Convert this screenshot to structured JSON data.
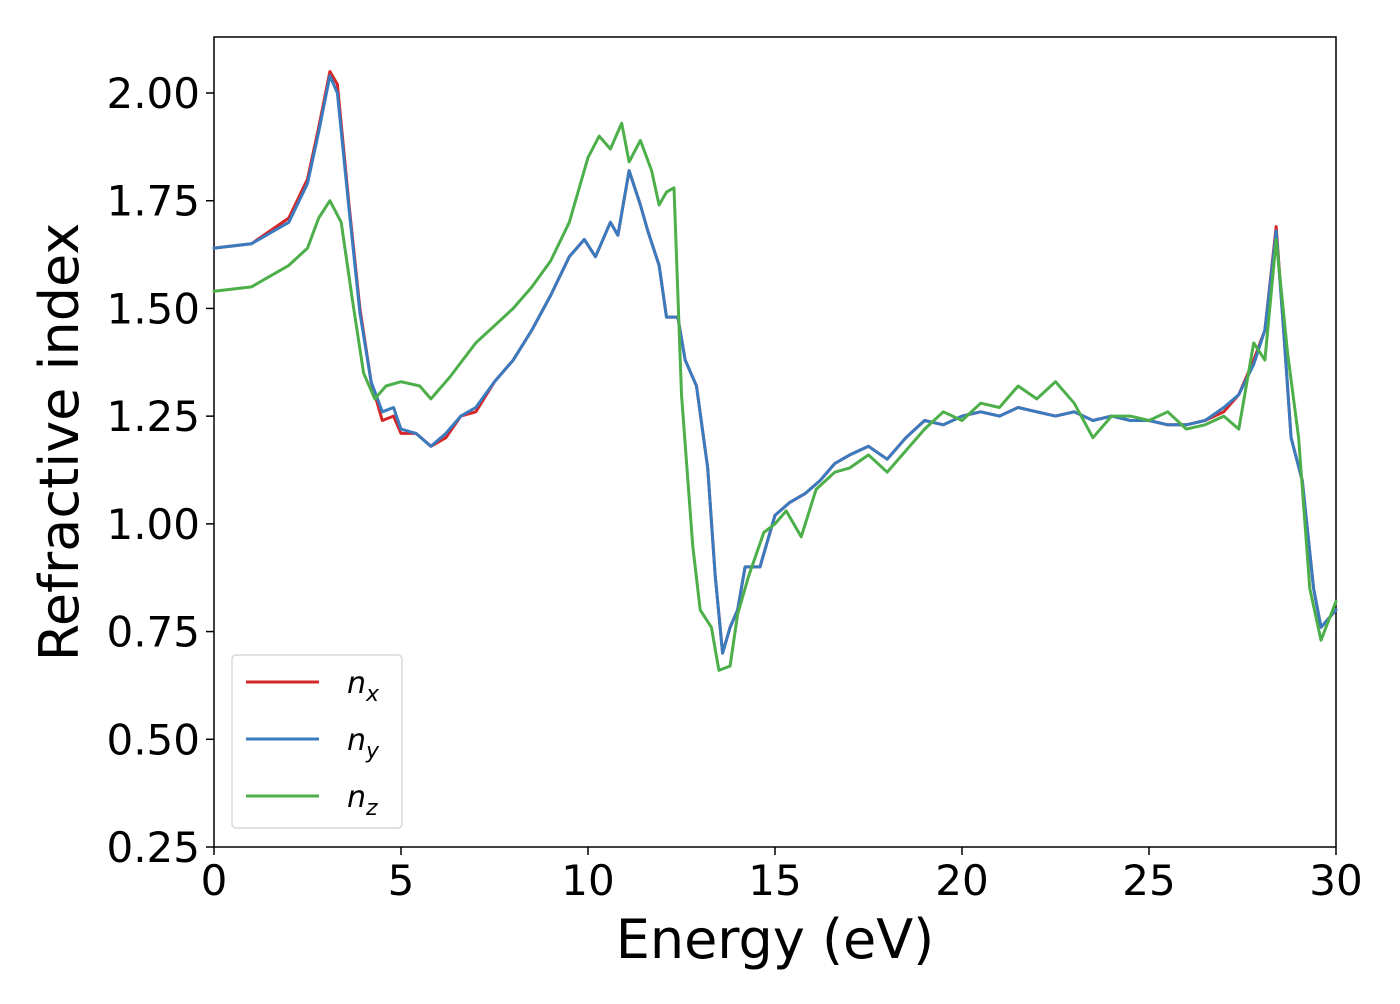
{
  "chart_data": {
    "type": "line",
    "title": "",
    "xlabel": "Energy (eV)",
    "ylabel": "Refractive index",
    "xlim": [
      0,
      30
    ],
    "ylim": [
      0.25,
      2.13
    ],
    "xticks": [
      0,
      5,
      10,
      15,
      20,
      25,
      30
    ],
    "xtick_labels": [
      "0",
      "5",
      "10",
      "15",
      "20",
      "25",
      "30"
    ],
    "yticks": [
      0.25,
      0.5,
      0.75,
      1.0,
      1.25,
      1.5,
      1.75,
      2.0
    ],
    "ytick_labels": [
      "0.25",
      "0.50",
      "0.75",
      "1.00",
      "1.25",
      "1.50",
      "1.75",
      "2.00"
    ],
    "grid": false,
    "legend_position": "lower-left",
    "series": [
      {
        "name": "n_x",
        "label_base": "n",
        "label_sub": "x",
        "color": "#d62728",
        "points": [
          [
            0,
            1.64
          ],
          [
            1,
            1.65
          ],
          [
            2,
            1.71
          ],
          [
            2.5,
            1.8
          ],
          [
            2.8,
            1.92
          ],
          [
            3.1,
            2.05
          ],
          [
            3.3,
            2.02
          ],
          [
            3.6,
            1.75
          ],
          [
            3.9,
            1.5
          ],
          [
            4.2,
            1.33
          ],
          [
            4.5,
            1.24
          ],
          [
            4.8,
            1.25
          ],
          [
            5.0,
            1.21
          ],
          [
            5.4,
            1.21
          ],
          [
            5.8,
            1.18
          ],
          [
            6.2,
            1.2
          ],
          [
            6.6,
            1.25
          ],
          [
            7.0,
            1.26
          ],
          [
            7.5,
            1.33
          ],
          [
            8.0,
            1.38
          ],
          [
            8.5,
            1.45
          ],
          [
            9.0,
            1.53
          ],
          [
            9.5,
            1.62
          ],
          [
            9.9,
            1.66
          ],
          [
            10.2,
            1.62
          ],
          [
            10.6,
            1.7
          ],
          [
            10.8,
            1.67
          ],
          [
            11.1,
            1.82
          ],
          [
            11.4,
            1.74
          ],
          [
            11.6,
            1.68
          ],
          [
            11.9,
            1.6
          ],
          [
            12.1,
            1.48
          ],
          [
            12.4,
            1.48
          ],
          [
            12.6,
            1.38
          ],
          [
            12.9,
            1.32
          ],
          [
            13.2,
            1.13
          ],
          [
            13.4,
            0.88
          ],
          [
            13.6,
            0.7
          ],
          [
            13.8,
            0.76
          ],
          [
            14.0,
            0.8
          ],
          [
            14.2,
            0.9
          ],
          [
            14.6,
            0.9
          ],
          [
            15.0,
            1.02
          ],
          [
            15.4,
            1.05
          ],
          [
            15.8,
            1.07
          ],
          [
            16.2,
            1.1
          ],
          [
            16.6,
            1.14
          ],
          [
            17.0,
            1.16
          ],
          [
            17.5,
            1.18
          ],
          [
            18.0,
            1.15
          ],
          [
            18.5,
            1.2
          ],
          [
            19.0,
            1.24
          ],
          [
            19.5,
            1.23
          ],
          [
            20.0,
            1.25
          ],
          [
            20.5,
            1.26
          ],
          [
            21.0,
            1.25
          ],
          [
            21.5,
            1.27
          ],
          [
            22.0,
            1.26
          ],
          [
            22.5,
            1.25
          ],
          [
            23.0,
            1.26
          ],
          [
            23.5,
            1.24
          ],
          [
            24.0,
            1.25
          ],
          [
            24.5,
            1.24
          ],
          [
            25.0,
            1.24
          ],
          [
            25.5,
            1.23
          ],
          [
            26.0,
            1.23
          ],
          [
            26.5,
            1.24
          ],
          [
            27.0,
            1.26
          ],
          [
            27.4,
            1.3
          ],
          [
            27.8,
            1.38
          ],
          [
            28.1,
            1.45
          ],
          [
            28.4,
            1.69
          ],
          [
            28.6,
            1.45
          ],
          [
            28.8,
            1.2
          ],
          [
            29.1,
            1.1
          ],
          [
            29.4,
            0.85
          ],
          [
            29.6,
            0.76
          ],
          [
            30.0,
            0.8
          ]
        ]
      },
      {
        "name": "n_y",
        "label_base": "n",
        "label_sub": "y",
        "color": "#3a7bbf",
        "points": [
          [
            0,
            1.64
          ],
          [
            1,
            1.65
          ],
          [
            2,
            1.7
          ],
          [
            2.5,
            1.79
          ],
          [
            2.8,
            1.91
          ],
          [
            3.1,
            2.04
          ],
          [
            3.3,
            2.0
          ],
          [
            3.6,
            1.74
          ],
          [
            3.9,
            1.49
          ],
          [
            4.2,
            1.33
          ],
          [
            4.5,
            1.26
          ],
          [
            4.8,
            1.27
          ],
          [
            5.0,
            1.22
          ],
          [
            5.4,
            1.21
          ],
          [
            5.8,
            1.18
          ],
          [
            6.2,
            1.21
          ],
          [
            6.6,
            1.25
          ],
          [
            7.0,
            1.27
          ],
          [
            7.5,
            1.33
          ],
          [
            8.0,
            1.38
          ],
          [
            8.5,
            1.45
          ],
          [
            9.0,
            1.53
          ],
          [
            9.5,
            1.62
          ],
          [
            9.9,
            1.66
          ],
          [
            10.2,
            1.62
          ],
          [
            10.6,
            1.7
          ],
          [
            10.8,
            1.67
          ],
          [
            11.1,
            1.82
          ],
          [
            11.4,
            1.74
          ],
          [
            11.6,
            1.68
          ],
          [
            11.9,
            1.6
          ],
          [
            12.1,
            1.48
          ],
          [
            12.4,
            1.48
          ],
          [
            12.6,
            1.38
          ],
          [
            12.9,
            1.32
          ],
          [
            13.2,
            1.13
          ],
          [
            13.4,
            0.88
          ],
          [
            13.6,
            0.7
          ],
          [
            13.8,
            0.76
          ],
          [
            14.0,
            0.8
          ],
          [
            14.2,
            0.9
          ],
          [
            14.6,
            0.9
          ],
          [
            15.0,
            1.02
          ],
          [
            15.4,
            1.05
          ],
          [
            15.8,
            1.07
          ],
          [
            16.2,
            1.1
          ],
          [
            16.6,
            1.14
          ],
          [
            17.0,
            1.16
          ],
          [
            17.5,
            1.18
          ],
          [
            18.0,
            1.15
          ],
          [
            18.5,
            1.2
          ],
          [
            19.0,
            1.24
          ],
          [
            19.5,
            1.23
          ],
          [
            20.0,
            1.25
          ],
          [
            20.5,
            1.26
          ],
          [
            21.0,
            1.25
          ],
          [
            21.5,
            1.27
          ],
          [
            22.0,
            1.26
          ],
          [
            22.5,
            1.25
          ],
          [
            23.0,
            1.26
          ],
          [
            23.5,
            1.24
          ],
          [
            24.0,
            1.25
          ],
          [
            24.5,
            1.24
          ],
          [
            25.0,
            1.24
          ],
          [
            25.5,
            1.23
          ],
          [
            26.0,
            1.23
          ],
          [
            26.5,
            1.24
          ],
          [
            27.0,
            1.27
          ],
          [
            27.4,
            1.3
          ],
          [
            27.8,
            1.37
          ],
          [
            28.1,
            1.45
          ],
          [
            28.4,
            1.68
          ],
          [
            28.6,
            1.45
          ],
          [
            28.8,
            1.2
          ],
          [
            29.1,
            1.1
          ],
          [
            29.4,
            0.85
          ],
          [
            29.6,
            0.76
          ],
          [
            30.0,
            0.8
          ]
        ]
      },
      {
        "name": "n_z",
        "label_base": "n",
        "label_sub": "z",
        "color": "#4daf4a",
        "points": [
          [
            0,
            1.54
          ],
          [
            1,
            1.55
          ],
          [
            2,
            1.6
          ],
          [
            2.5,
            1.64
          ],
          [
            2.8,
            1.71
          ],
          [
            3.1,
            1.75
          ],
          [
            3.4,
            1.7
          ],
          [
            3.7,
            1.52
          ],
          [
            4.0,
            1.35
          ],
          [
            4.3,
            1.29
          ],
          [
            4.6,
            1.32
          ],
          [
            5.0,
            1.33
          ],
          [
            5.5,
            1.32
          ],
          [
            5.8,
            1.29
          ],
          [
            6.3,
            1.34
          ],
          [
            7.0,
            1.42
          ],
          [
            7.5,
            1.46
          ],
          [
            8.0,
            1.5
          ],
          [
            8.5,
            1.55
          ],
          [
            9.0,
            1.61
          ],
          [
            9.5,
            1.7
          ],
          [
            10.0,
            1.85
          ],
          [
            10.3,
            1.9
          ],
          [
            10.6,
            1.87
          ],
          [
            10.9,
            1.93
          ],
          [
            11.1,
            1.84
          ],
          [
            11.4,
            1.89
          ],
          [
            11.7,
            1.82
          ],
          [
            11.9,
            1.74
          ],
          [
            12.1,
            1.77
          ],
          [
            12.3,
            1.78
          ],
          [
            12.5,
            1.3
          ],
          [
            12.8,
            0.95
          ],
          [
            13.0,
            0.8
          ],
          [
            13.3,
            0.76
          ],
          [
            13.5,
            0.66
          ],
          [
            13.8,
            0.67
          ],
          [
            14.0,
            0.79
          ],
          [
            14.3,
            0.88
          ],
          [
            14.7,
            0.98
          ],
          [
            15.0,
            1.0
          ],
          [
            15.3,
            1.03
          ],
          [
            15.7,
            0.97
          ],
          [
            16.1,
            1.08
          ],
          [
            16.6,
            1.12
          ],
          [
            17.0,
            1.13
          ],
          [
            17.5,
            1.16
          ],
          [
            18.0,
            1.12
          ],
          [
            18.5,
            1.17
          ],
          [
            19.0,
            1.22
          ],
          [
            19.5,
            1.26
          ],
          [
            20.0,
            1.24
          ],
          [
            20.5,
            1.28
          ],
          [
            21.0,
            1.27
          ],
          [
            21.5,
            1.32
          ],
          [
            22.0,
            1.29
          ],
          [
            22.5,
            1.33
          ],
          [
            23.0,
            1.28
          ],
          [
            23.5,
            1.2
          ],
          [
            24.0,
            1.25
          ],
          [
            24.5,
            1.25
          ],
          [
            25.0,
            1.24
          ],
          [
            25.5,
            1.26
          ],
          [
            26.0,
            1.22
          ],
          [
            26.5,
            1.23
          ],
          [
            27.0,
            1.25
          ],
          [
            27.4,
            1.22
          ],
          [
            27.8,
            1.42
          ],
          [
            28.1,
            1.38
          ],
          [
            28.4,
            1.66
          ],
          [
            28.7,
            1.4
          ],
          [
            29.0,
            1.2
          ],
          [
            29.3,
            0.85
          ],
          [
            29.6,
            0.73
          ],
          [
            30.0,
            0.82
          ]
        ]
      }
    ]
  }
}
